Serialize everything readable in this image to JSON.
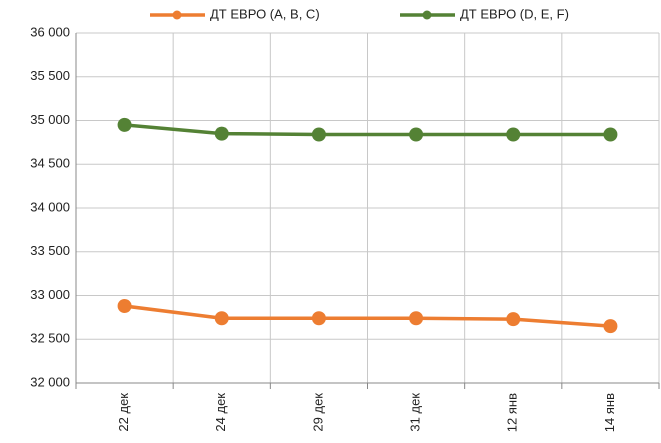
{
  "chart_data": {
    "type": "line",
    "categories": [
      "22 дек",
      "24 дек",
      "29 дек",
      "31 дек",
      "12 янв",
      "14 янв"
    ],
    "series": [
      {
        "name": "ДТ ЕВРО (A, B, C)",
        "color": "#ed7d31",
        "values": [
          32880,
          32740,
          32740,
          32740,
          32730,
          32650
        ]
      },
      {
        "name": "ДТ ЕВРО (D, E, F)",
        "color": "#548235",
        "values": [
          34950,
          34850,
          34840,
          34840,
          34840,
          34840
        ]
      }
    ],
    "ylim": [
      32000,
      36000
    ],
    "yticks": [
      {
        "value": 32000,
        "label": "32 000"
      },
      {
        "value": 32500,
        "label": "32 500"
      },
      {
        "value": 33000,
        "label": "33 000"
      },
      {
        "value": 33500,
        "label": "33 500"
      },
      {
        "value": 34000,
        "label": "34 000"
      },
      {
        "value": 34500,
        "label": "34 500"
      },
      {
        "value": 35000,
        "label": "35 000"
      },
      {
        "value": 35500,
        "label": "35 500"
      },
      {
        "value": 36000,
        "label": "36 000"
      }
    ],
    "grid": true,
    "legend": "top"
  }
}
